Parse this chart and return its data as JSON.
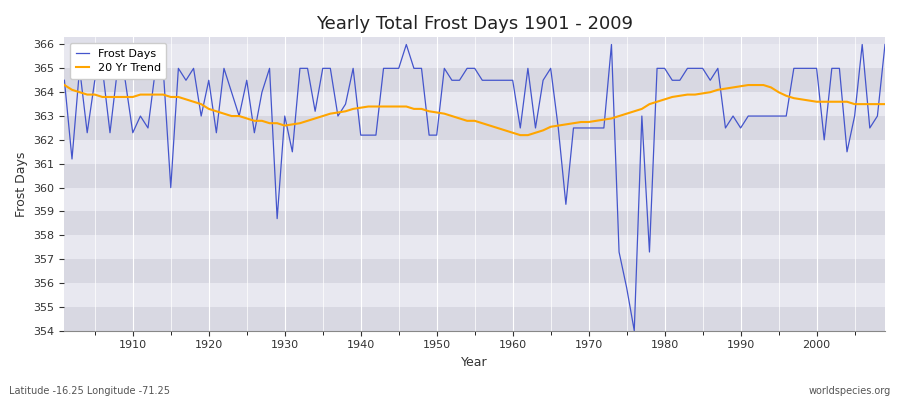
{
  "title": "Yearly Total Frost Days 1901 - 2009",
  "xlabel": "Year",
  "ylabel": "Frost Days",
  "subtitle": "Latitude -16.25 Longitude -71.25",
  "watermark": "worldspecies.org",
  "line_color": "#4455cc",
  "trend_color": "#FFA500",
  "bg_color": "#e0e0ea",
  "fig_color": "#ffffff",
  "grid_color": "#ffffff",
  "ylim": [
    354,
    366.3
  ],
  "years": [
    1901,
    1902,
    1903,
    1904,
    1905,
    1906,
    1907,
    1908,
    1909,
    1910,
    1911,
    1912,
    1913,
    1914,
    1915,
    1916,
    1917,
    1918,
    1919,
    1920,
    1921,
    1922,
    1923,
    1924,
    1925,
    1926,
    1927,
    1928,
    1929,
    1930,
    1931,
    1932,
    1933,
    1934,
    1935,
    1936,
    1937,
    1938,
    1939,
    1940,
    1941,
    1942,
    1943,
    1944,
    1945,
    1946,
    1947,
    1948,
    1949,
    1950,
    1951,
    1952,
    1953,
    1954,
    1955,
    1956,
    1957,
    1958,
    1959,
    1960,
    1961,
    1962,
    1963,
    1964,
    1965,
    1966,
    1967,
    1968,
    1969,
    1970,
    1971,
    1972,
    1973,
    1974,
    1975,
    1976,
    1977,
    1978,
    1979,
    1980,
    1981,
    1982,
    1983,
    1984,
    1985,
    1986,
    1987,
    1988,
    1989,
    1990,
    1991,
    1992,
    1993,
    1994,
    1995,
    1996,
    1997,
    1998,
    1999,
    2000,
    2001,
    2002,
    2003,
    2004,
    2005,
    2006,
    2007,
    2008,
    2009
  ],
  "frost_days": [
    364.5,
    361.2,
    365,
    362.3,
    364.5,
    365,
    362.3,
    365,
    364.5,
    362.3,
    363,
    362.5,
    365,
    365,
    360,
    365,
    364.5,
    365,
    363,
    364.5,
    362.3,
    365,
    364,
    363,
    364.5,
    362.3,
    364,
    365,
    358.7,
    363,
    361.5,
    365,
    365,
    363.2,
    365,
    365,
    363,
    363.5,
    365,
    362.2,
    362.2,
    362.2,
    365,
    365,
    365,
    366,
    365,
    365,
    362.2,
    362.2,
    365,
    364.5,
    364.5,
    365,
    365,
    364.5,
    364.5,
    364.5,
    364.5,
    364.5,
    362.5,
    365,
    362.5,
    364.5,
    365,
    362.5,
    359.3,
    362.5,
    362.5,
    362.5,
    362.5,
    362.5,
    366,
    357.3,
    355.8,
    354,
    363,
    357.3,
    365,
    365,
    364.5,
    364.5,
    365,
    365,
    365,
    364.5,
    365,
    362.5,
    363,
    362.5,
    363,
    363,
    363,
    363,
    363,
    363,
    365,
    365,
    365,
    365,
    362,
    365,
    365,
    361.5,
    363,
    366,
    362.5,
    363,
    366
  ],
  "trend_years": [
    1901,
    1902,
    1903,
    1904,
    1905,
    1906,
    1907,
    1908,
    1909,
    1910,
    1911,
    1912,
    1913,
    1914,
    1915,
    1916,
    1917,
    1918,
    1919,
    1920,
    1921,
    1922,
    1923,
    1924,
    1925,
    1926,
    1927,
    1928,
    1929,
    1930,
    1931,
    1932,
    1933,
    1934,
    1935,
    1936,
    1937,
    1938,
    1939,
    1940,
    1941,
    1942,
    1943,
    1944,
    1945,
    1946,
    1947,
    1948,
    1949,
    1950,
    1951,
    1952,
    1953,
    1954,
    1955,
    1956,
    1957,
    1958,
    1959,
    1960,
    1961,
    1962,
    1963,
    1964,
    1965,
    1966,
    1967,
    1968,
    1969,
    1970,
    1971,
    1972,
    1973,
    1974,
    1975,
    1976,
    1977,
    1978,
    1979,
    1980,
    1981,
    1982,
    1983,
    1984,
    1985,
    1986,
    1987,
    1988,
    1989,
    1990,
    1991,
    1992,
    1993,
    1994,
    1995,
    1996,
    1997,
    1998,
    1999,
    2000,
    2001,
    2002,
    2003,
    2004,
    2005,
    2006,
    2007,
    2008,
    2009
  ],
  "trend_values": [
    364.3,
    364.1,
    364.0,
    363.9,
    363.9,
    363.8,
    363.8,
    363.8,
    363.8,
    363.8,
    363.9,
    363.9,
    363.9,
    363.9,
    363.8,
    363.8,
    363.7,
    363.6,
    363.5,
    363.3,
    363.2,
    363.1,
    363.0,
    363.0,
    362.9,
    362.8,
    362.8,
    362.7,
    362.7,
    362.6,
    362.65,
    362.7,
    362.8,
    362.9,
    363.0,
    363.1,
    363.15,
    363.2,
    363.3,
    363.35,
    363.4,
    363.4,
    363.4,
    363.4,
    363.4,
    363.4,
    363.3,
    363.3,
    363.2,
    363.15,
    363.1,
    363.0,
    362.9,
    362.8,
    362.8,
    362.7,
    362.6,
    362.5,
    362.4,
    362.3,
    362.2,
    362.2,
    362.3,
    362.4,
    362.55,
    362.6,
    362.65,
    362.7,
    362.75,
    362.75,
    362.8,
    362.85,
    362.9,
    363.0,
    363.1,
    363.2,
    363.3,
    363.5,
    363.6,
    363.7,
    363.8,
    363.85,
    363.9,
    363.9,
    363.95,
    364.0,
    364.1,
    364.15,
    364.2,
    364.25,
    364.3,
    364.3,
    364.3,
    364.2,
    364.0,
    363.85,
    363.75,
    363.7,
    363.65,
    363.6,
    363.6,
    363.6,
    363.6,
    363.6,
    363.5,
    363.5,
    363.5,
    363.5,
    363.5
  ]
}
